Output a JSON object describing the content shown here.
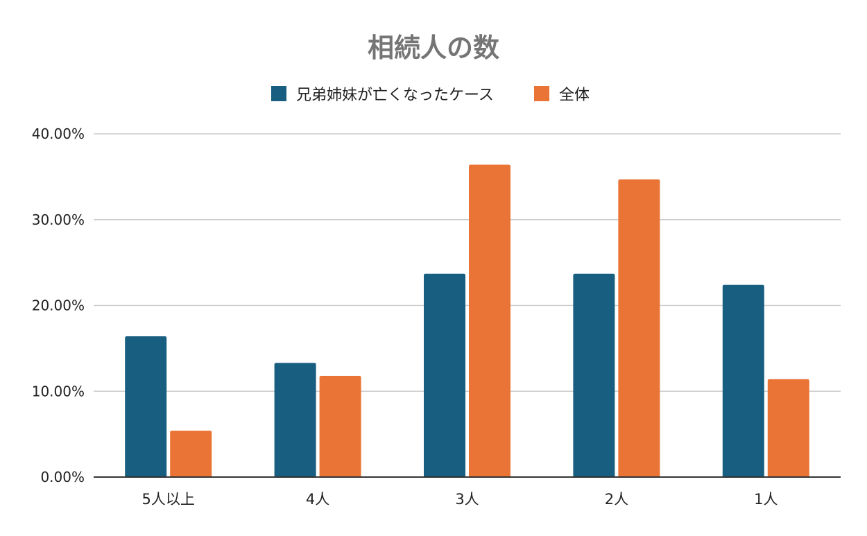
{
  "chart_data": {
    "type": "bar",
    "title": "相続人の数",
    "categories": [
      "5人以上",
      "4人",
      "3人",
      "2人",
      "1人"
    ],
    "series": [
      {
        "name": "兄弟姉妹が亡くなったケース",
        "color": "#175e80",
        "values": [
          16.4,
          13.3,
          23.7,
          23.7,
          22.4
        ]
      },
      {
        "name": "全体",
        "color": "#e97435",
        "values": [
          5.4,
          11.8,
          36.4,
          34.7,
          11.4
        ]
      }
    ],
    "ylim": [
      0,
      40
    ],
    "yticks": [
      "0.00%",
      "10.00%",
      "20.00%",
      "30.00%",
      "40.00%"
    ],
    "xlabel": "",
    "ylabel": "",
    "grid": true,
    "legend_position": "top-center"
  }
}
